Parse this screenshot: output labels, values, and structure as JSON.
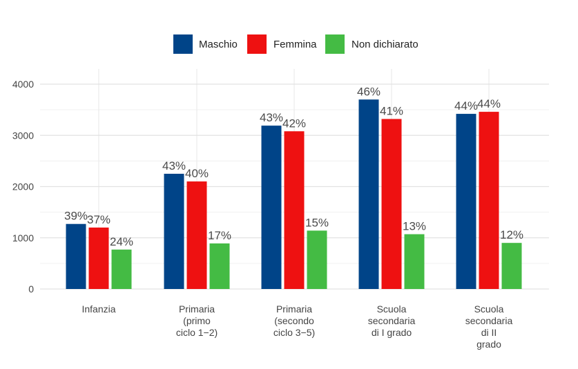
{
  "chart_data": {
    "type": "bar",
    "title": "",
    "xlabel": "",
    "ylabel": "",
    "ylim": [
      0,
      4200
    ],
    "yticks": [
      0,
      1000,
      2000,
      3000,
      4000
    ],
    "grid": true,
    "legend_position": "top",
    "categories": [
      [
        "Infanzia"
      ],
      [
        "Primaria",
        "(primo",
        "ciclo 1−2)"
      ],
      [
        "Primaria",
        "(secondo",
        "ciclo 3−5)"
      ],
      [
        "Scuola",
        "secondaria",
        "di I grado"
      ],
      [
        "Scuola",
        "secondaria",
        "di II",
        "grado"
      ]
    ],
    "series": [
      {
        "name": "Maschio",
        "color": "#004488",
        "values": [
          1270,
          2250,
          3190,
          3700,
          3420
        ],
        "labels": [
          "39%",
          "43%",
          "43%",
          "46%",
          "44%"
        ]
      },
      {
        "name": "Femmina",
        "color": "#ee1111",
        "values": [
          1200,
          2100,
          3080,
          3320,
          3460
        ],
        "labels": [
          "37%",
          "40%",
          "42%",
          "41%",
          "44%"
        ]
      },
      {
        "name": "Non dichiarato",
        "color": "#44bb44",
        "values": [
          770,
          890,
          1140,
          1070,
          900
        ],
        "labels": [
          "24%",
          "17%",
          "15%",
          "13%",
          "12%"
        ]
      }
    ]
  }
}
